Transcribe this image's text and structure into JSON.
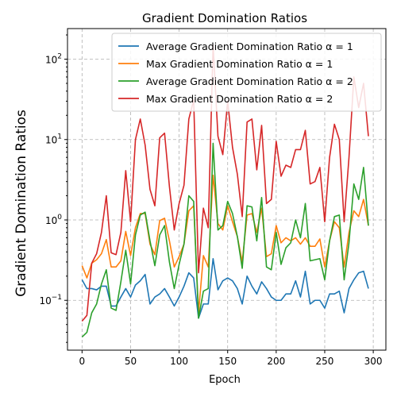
{
  "chart_data": {
    "type": "line",
    "title": "Gradient Domination Ratios",
    "xlabel": "Epoch",
    "ylabel": "Gradient Domination Ratios",
    "yscale": "log",
    "xlim": [
      -15,
      313
    ],
    "ylim": [
      0.024,
      240
    ],
    "xticks": [
      0,
      50,
      100,
      150,
      200,
      250,
      300
    ],
    "yticks": [
      0.1,
      1,
      10,
      100
    ],
    "ytick_labels": [
      [
        "10",
        "−1"
      ],
      [
        "10",
        "0"
      ],
      [
        "10",
        "1"
      ],
      [
        "10",
        "2"
      ]
    ],
    "grid": true,
    "legend_position": "top-right",
    "x": [
      0,
      5,
      10,
      15,
      20,
      25,
      30,
      35,
      40,
      45,
      50,
      55,
      60,
      65,
      70,
      75,
      80,
      85,
      90,
      95,
      100,
      105,
      110,
      115,
      120,
      125,
      130,
      135,
      140,
      145,
      150,
      155,
      160,
      165,
      170,
      175,
      180,
      185,
      190,
      195,
      200,
      205,
      210,
      215,
      220,
      225,
      230,
      235,
      240,
      245,
      250,
      255,
      260,
      265,
      270,
      275,
      280,
      285,
      290,
      295
    ],
    "series": [
      {
        "name": "Average Gradient Domination Ratio α = 1",
        "color": "#1f77b4",
        "values": [
          0.18,
          0.14,
          0.14,
          0.135,
          0.15,
          0.15,
          0.085,
          0.085,
          0.11,
          0.14,
          0.11,
          0.155,
          0.175,
          0.21,
          0.09,
          0.11,
          0.12,
          0.14,
          0.11,
          0.085,
          0.11,
          0.15,
          0.22,
          0.19,
          0.06,
          0.09,
          0.09,
          0.33,
          0.135,
          0.175,
          0.19,
          0.175,
          0.14,
          0.09,
          0.2,
          0.15,
          0.12,
          0.17,
          0.14,
          0.11,
          0.1,
          0.1,
          0.12,
          0.12,
          0.175,
          0.11,
          0.23,
          0.09,
          0.1,
          0.1,
          0.08,
          0.12,
          0.12,
          0.13,
          0.07,
          0.14,
          0.18,
          0.22,
          0.23,
          0.14
        ]
      },
      {
        "name": "Max Gradient Domination Ratio α = 1",
        "color": "#ff7f0e",
        "values": [
          0.27,
          0.19,
          0.29,
          0.32,
          0.38,
          0.57,
          0.26,
          0.26,
          0.31,
          0.72,
          0.36,
          0.8,
          1.2,
          1.2,
          0.5,
          0.37,
          0.98,
          1.05,
          0.55,
          0.26,
          0.35,
          0.5,
          1.3,
          1.5,
          0.07,
          0.36,
          0.26,
          3.6,
          0.9,
          0.75,
          1.5,
          0.95,
          0.62,
          0.3,
          1.15,
          1.2,
          0.7,
          1.4,
          0.35,
          0.38,
          0.85,
          0.52,
          0.6,
          0.55,
          0.6,
          0.5,
          0.6,
          0.47,
          0.47,
          0.58,
          0.26,
          0.55,
          0.95,
          0.8,
          0.26,
          0.7,
          1.3,
          1.1,
          1.8,
          0.85
        ]
      },
      {
        "name": "Average Gradient Domination Ratio α = 2",
        "color": "#2ca02c",
        "values": [
          0.035,
          0.04,
          0.07,
          0.09,
          0.16,
          0.24,
          0.08,
          0.075,
          0.17,
          0.42,
          0.16,
          0.65,
          1.15,
          1.25,
          0.55,
          0.27,
          0.65,
          0.85,
          0.3,
          0.14,
          0.28,
          0.5,
          2.0,
          1.7,
          0.06,
          0.13,
          0.14,
          9.0,
          0.75,
          0.85,
          1.7,
          1.2,
          0.62,
          0.25,
          1.5,
          1.45,
          0.55,
          1.9,
          0.26,
          0.24,
          0.7,
          0.28,
          0.45,
          0.52,
          1.0,
          0.6,
          1.6,
          0.31,
          0.32,
          0.33,
          0.18,
          0.55,
          1.1,
          1.15,
          0.18,
          0.52,
          2.8,
          1.8,
          4.5,
          0.85
        ]
      },
      {
        "name": "Max Gradient Domination Ratio α = 2",
        "color": "#d62728",
        "values": [
          0.055,
          0.065,
          0.29,
          0.38,
          0.7,
          2.0,
          0.39,
          0.37,
          0.7,
          4.1,
          0.95,
          10,
          18,
          8.5,
          2.4,
          1.5,
          10.5,
          12,
          2.6,
          0.75,
          1.6,
          2.7,
          18,
          31,
          0.22,
          1.4,
          0.8,
          150,
          11,
          6.5,
          30,
          8,
          3.7,
          1.1,
          16.5,
          18,
          4.2,
          15,
          1.6,
          1.8,
          9.5,
          3.5,
          4.8,
          4.5,
          7.5,
          7.5,
          13,
          2.8,
          3.0,
          4.5,
          0.95,
          6,
          15.5,
          10,
          0.95,
          6,
          60,
          25,
          50,
          11
        ]
      }
    ]
  }
}
